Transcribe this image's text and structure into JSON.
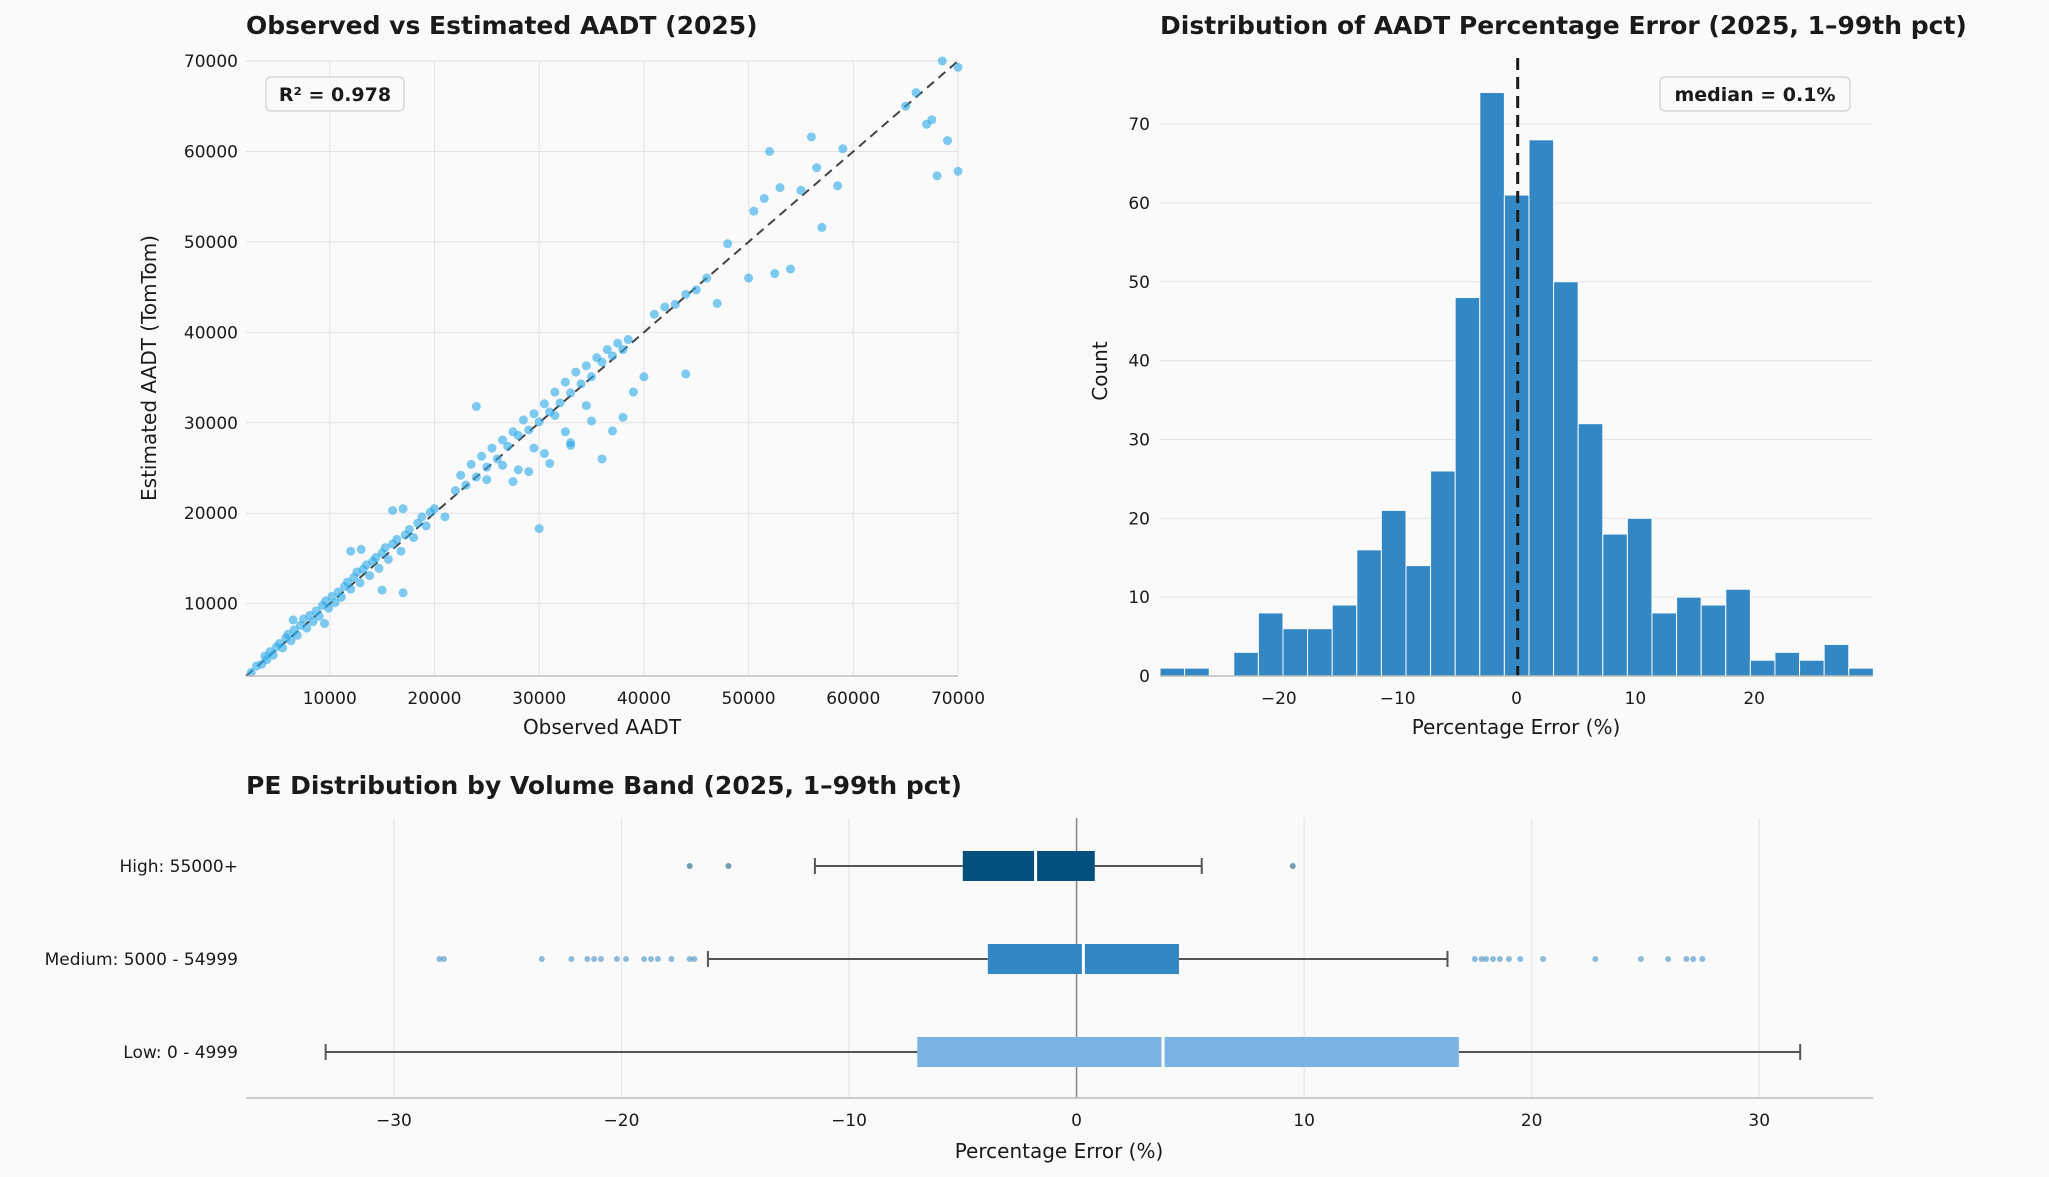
{
  "chart_data": [
    {
      "type": "scatter",
      "title": "Observed vs Estimated AADT (2025)",
      "xlabel": "Observed AADT",
      "ylabel": "Estimated AADT (TomTom)",
      "xlim": [
        2000,
        70000
      ],
      "ylim": [
        2000,
        70000
      ],
      "xticks": [
        "10000",
        "20000",
        "30000",
        "40000",
        "50000",
        "60000",
        "70000"
      ],
      "yticks": [
        "10000",
        "20000",
        "30000",
        "40000",
        "50000",
        "60000",
        "70000"
      ],
      "xtick_values": [
        10000,
        20000,
        30000,
        40000,
        50000,
        60000,
        70000
      ],
      "ytick_values": [
        10000,
        20000,
        30000,
        40000,
        50000,
        60000,
        70000
      ],
      "reference_line": "y = x",
      "annotation": "R² = 0.978",
      "point_color": "#29a8e8",
      "grid": true,
      "points": [
        [
          2500,
          2400
        ],
        [
          3000,
          3100
        ],
        [
          3500,
          3300
        ],
        [
          3800,
          4200
        ],
        [
          4000,
          3800
        ],
        [
          4300,
          4700
        ],
        [
          4600,
          4300
        ],
        [
          4900,
          5200
        ],
        [
          5200,
          5600
        ],
        [
          5500,
          5100
        ],
        [
          5800,
          6200
        ],
        [
          6000,
          6600
        ],
        [
          6300,
          5900
        ],
        [
          6600,
          7100
        ],
        [
          6900,
          6500
        ],
        [
          7200,
          7600
        ],
        [
          7500,
          8300
        ],
        [
          7800,
          7300
        ],
        [
          8100,
          8700
        ],
        [
          8400,
          8000
        ],
        [
          8700,
          9200
        ],
        [
          9000,
          8600
        ],
        [
          9300,
          9800
        ],
        [
          9600,
          10300
        ],
        [
          9900,
          9500
        ],
        [
          10200,
          10800
        ],
        [
          10500,
          10100
        ],
        [
          10800,
          11300
        ],
        [
          11100,
          10700
        ],
        [
          11400,
          11900
        ],
        [
          11700,
          12400
        ],
        [
          12000,
          11600
        ],
        [
          12300,
          12900
        ],
        [
          12600,
          13500
        ],
        [
          12900,
          12300
        ],
        [
          13200,
          13800
        ],
        [
          13500,
          14300
        ],
        [
          13800,
          13100
        ],
        [
          14100,
          14700
        ],
        [
          14400,
          15100
        ],
        [
          14700,
          13900
        ],
        [
          15000,
          15600
        ],
        [
          15300,
          16200
        ],
        [
          15600,
          14900
        ],
        [
          16000,
          16600
        ],
        [
          16400,
          17100
        ],
        [
          16800,
          15800
        ],
        [
          17200,
          17600
        ],
        [
          17600,
          18200
        ],
        [
          18000,
          17300
        ],
        [
          18400,
          18900
        ],
        [
          18800,
          19600
        ],
        [
          19200,
          18600
        ],
        [
          19600,
          20100
        ],
        [
          20000,
          20500
        ],
        [
          6500,
          8200
        ],
        [
          9500,
          7800
        ],
        [
          12000,
          15800
        ],
        [
          13000,
          16000
        ],
        [
          16000,
          20300
        ],
        [
          17000,
          20500
        ],
        [
          15000,
          11500
        ],
        [
          17000,
          11200
        ],
        [
          21000,
          19600
        ],
        [
          22000,
          22500
        ],
        [
          22500,
          24200
        ],
        [
          23000,
          23100
        ],
        [
          23500,
          25400
        ],
        [
          24000,
          24000
        ],
        [
          24500,
          26300
        ],
        [
          25000,
          25100
        ],
        [
          25500,
          27200
        ],
        [
          26000,
          26000
        ],
        [
          26500,
          28100
        ],
        [
          27000,
          27400
        ],
        [
          27500,
          29000
        ],
        [
          28000,
          28600
        ],
        [
          28500,
          30300
        ],
        [
          29000,
          29200
        ],
        [
          29500,
          31000
        ],
        [
          30000,
          30100
        ],
        [
          30500,
          32100
        ],
        [
          31000,
          31200
        ],
        [
          31500,
          33400
        ],
        [
          32000,
          32200
        ],
        [
          32500,
          34500
        ],
        [
          33000,
          33300
        ],
        [
          33500,
          35600
        ],
        [
          34000,
          34300
        ],
        [
          34500,
          36300
        ],
        [
          35000,
          35100
        ],
        [
          35500,
          37200
        ],
        [
          36000,
          36700
        ],
        [
          36500,
          38100
        ],
        [
          37000,
          37400
        ],
        [
          37500,
          38800
        ],
        [
          38000,
          38100
        ],
        [
          38500,
          39200
        ],
        [
          24000,
          31800
        ],
        [
          28000,
          24800
        ],
        [
          29000,
          24600
        ],
        [
          30000,
          18300
        ],
        [
          33000,
          27500
        ],
        [
          35000,
          30200
        ],
        [
          37000,
          29100
        ],
        [
          38000,
          30600
        ],
        [
          39000,
          33400
        ],
        [
          40000,
          35100
        ],
        [
          41000,
          42000
        ],
        [
          42000,
          42800
        ],
        [
          43000,
          43100
        ],
        [
          44000,
          44200
        ],
        [
          44000,
          35400
        ],
        [
          45000,
          44700
        ],
        [
          47000,
          43200
        ],
        [
          46000,
          46000
        ],
        [
          48000,
          49800
        ],
        [
          50000,
          46000
        ],
        [
          50500,
          53400
        ],
        [
          51500,
          54800
        ],
        [
          52000,
          60000
        ],
        [
          52500,
          46500
        ],
        [
          53000,
          56000
        ],
        [
          54000,
          47000
        ],
        [
          55000,
          55700
        ],
        [
          56000,
          61600
        ],
        [
          56500,
          58200
        ],
        [
          57000,
          51600
        ],
        [
          59000,
          60300
        ],
        [
          58500,
          56200
        ],
        [
          65000,
          65000
        ],
        [
          66000,
          66500
        ],
        [
          67000,
          63000
        ],
        [
          67500,
          63500
        ],
        [
          68000,
          57300
        ],
        [
          68500,
          70000
        ],
        [
          69000,
          61200
        ],
        [
          70000,
          57800
        ],
        [
          70000,
          69300
        ],
        [
          31000,
          25500
        ],
        [
          33000,
          27800
        ],
        [
          36000,
          26000
        ],
        [
          25000,
          23700
        ],
        [
          26500,
          25300
        ],
        [
          27500,
          23500
        ],
        [
          30500,
          26600
        ],
        [
          32500,
          29000
        ],
        [
          34500,
          31900
        ],
        [
          29500,
          27200
        ],
        [
          31500,
          30800
        ]
      ]
    },
    {
      "type": "bar",
      "subtype": "histogram",
      "title": "Distribution of AADT Percentage Error (2025, 1–99th pct)",
      "xlabel": "Percentage Error (%)",
      "ylabel": "Count",
      "xlim": [
        -30,
        30
      ],
      "ylim": [
        0,
        78
      ],
      "xticks": [
        "−20",
        "−10",
        "0",
        "10",
        "20"
      ],
      "xtick_values": [
        -20,
        -10,
        0,
        10,
        20
      ],
      "yticks": [
        "0",
        "10",
        "20",
        "30",
        "40",
        "50",
        "60",
        "70"
      ],
      "ytick_values": [
        0,
        10,
        20,
        30,
        40,
        50,
        60,
        70
      ],
      "bin_width": 2.07,
      "bin_start": -30,
      "values": [
        1,
        1,
        0,
        3,
        8,
        6,
        6,
        9,
        16,
        21,
        14,
        26,
        48,
        74,
        61,
        68,
        50,
        32,
        18,
        20,
        8,
        10,
        9,
        11,
        2,
        3,
        2,
        4,
        1
      ],
      "bar_color": "#3387c4",
      "median_line": 0.1,
      "annotation": "median = 0.1%",
      "grid": true
    },
    {
      "type": "box",
      "title": "PE Distribution by Volume Band (2025, 1–99th pct)",
      "xlabel": "Percentage Error (%)",
      "xlim": [
        -36.5,
        35
      ],
      "xticks": [
        "−30",
        "−20",
        "−10",
        "0",
        "10",
        "20",
        "30"
      ],
      "xtick_values": [
        -30,
        -20,
        -10,
        0,
        10,
        20,
        30
      ],
      "grid": true,
      "bands": [
        {
          "label": "High: 55000+",
          "color": "#034f7e",
          "whisker_low": -11.5,
          "q1": -5.0,
          "median": -1.8,
          "q3": 0.8,
          "whisker_high": 5.5,
          "outliers": [
            -17.0,
            -15.3,
            9.5
          ]
        },
        {
          "label": "Medium: 5000 - 54999",
          "color": "#3387c4",
          "whisker_low": -16.2,
          "q1": -3.9,
          "median": 0.3,
          "q3": 4.5,
          "whisker_high": 16.3,
          "outliers": [
            -28.0,
            -27.8,
            -23.5,
            -22.2,
            -21.5,
            -21.2,
            -20.9,
            -20.2,
            -19.8,
            -19.0,
            -18.7,
            -18.4,
            -17.8,
            -17.0,
            -16.8,
            17.5,
            17.8,
            18.0,
            18.3,
            18.6,
            19.0,
            19.5,
            20.5,
            22.8,
            24.8,
            26.0,
            26.8,
            27.1,
            27.5
          ]
        },
        {
          "label": "Low: 0 - 4999",
          "color": "#7bb4e2",
          "whisker_low": -33.0,
          "q1": -7.0,
          "median": 3.8,
          "q3": 16.8,
          "whisker_high": 31.8,
          "outliers": []
        }
      ]
    }
  ]
}
